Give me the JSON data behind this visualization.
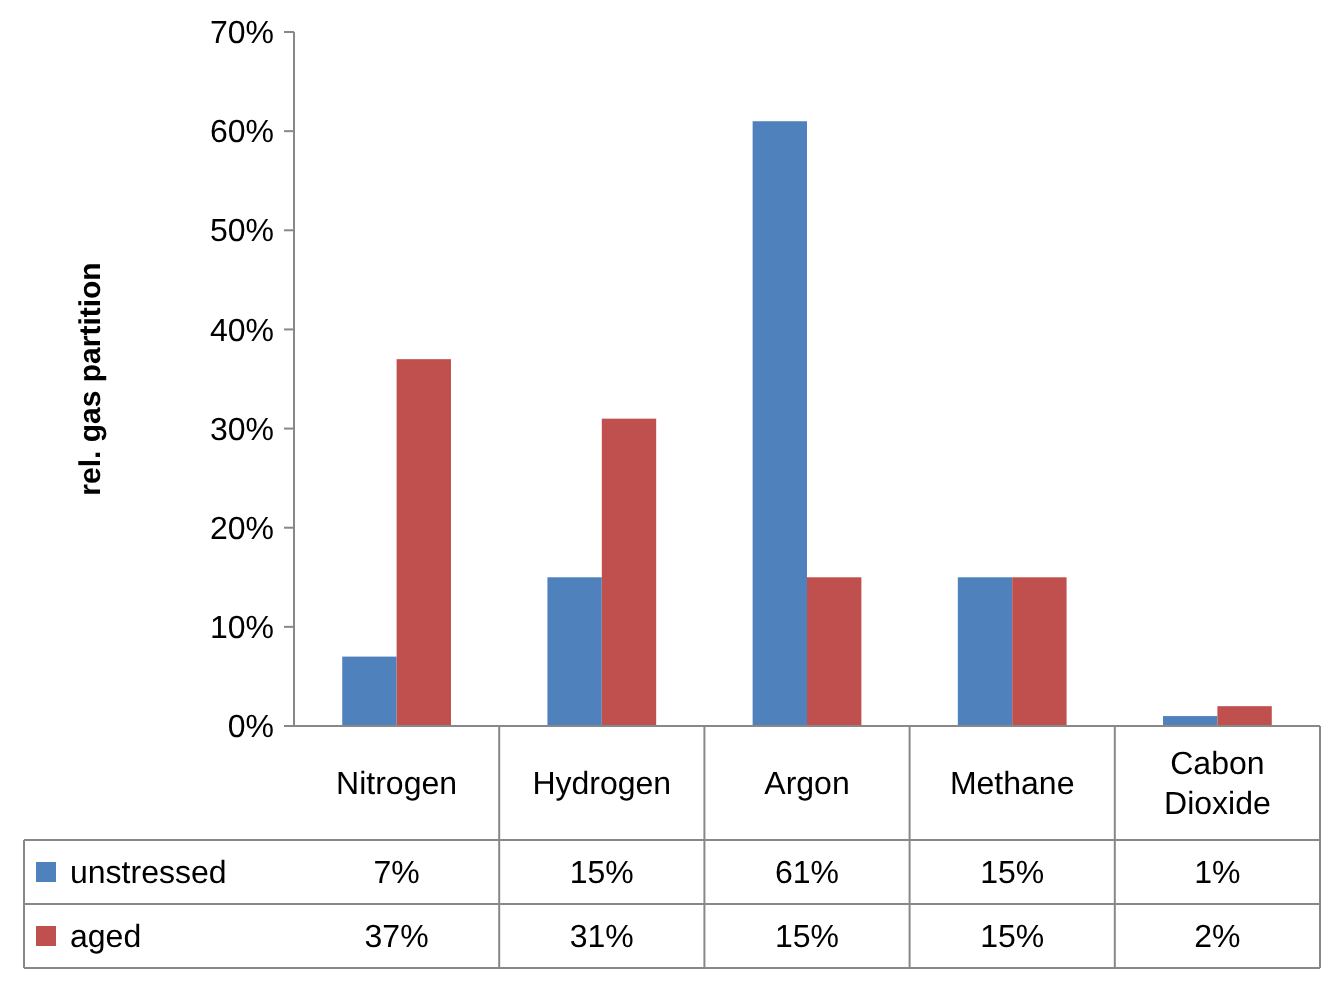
{
  "chart_data": {
    "type": "bar",
    "ylabel": "rel. gas partition",
    "categories": [
      "Nitrogen",
      "Hydrogen",
      "Argon",
      "Methane",
      "Cabon Dioxide"
    ],
    "series": [
      {
        "name": "unstressed",
        "color": "#4f81bd",
        "values": [
          7,
          15,
          61,
          15,
          1
        ],
        "value_labels": [
          "7%",
          "15%",
          "61%",
          "15%",
          "1%"
        ]
      },
      {
        "name": "aged",
        "color": "#c0504d",
        "values": [
          37,
          31,
          15,
          15,
          2
        ],
        "value_labels": [
          "37%",
          "31%",
          "15%",
          "15%",
          "2%"
        ]
      }
    ],
    "ylim": [
      0,
      70
    ],
    "yticks": [
      {
        "value": 0,
        "label": "0%"
      },
      {
        "value": 10,
        "label": "10%"
      },
      {
        "value": 20,
        "label": "20%"
      },
      {
        "value": 30,
        "label": "30%"
      },
      {
        "value": 40,
        "label": "40%"
      },
      {
        "value": 50,
        "label": "50%"
      },
      {
        "value": 60,
        "label": "60%"
      },
      {
        "value": 70,
        "label": "70%"
      }
    ],
    "grid": false,
    "legend": "bottom"
  }
}
